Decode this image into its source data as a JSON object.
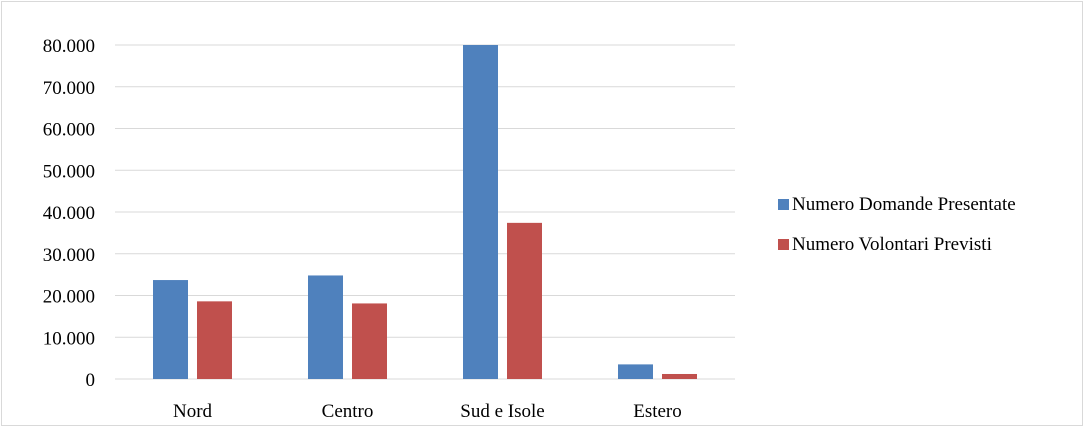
{
  "chart_data": {
    "type": "bar",
    "categories": [
      "Nord",
      "Centro",
      "Sud e Isole",
      "Estero"
    ],
    "series": [
      {
        "name": "Numero Domande Presentate",
        "color": "#4f81bd",
        "values": [
          23700,
          24800,
          80000,
          3500
        ]
      },
      {
        "name": "Numero Volontari Previsti",
        "color": "#c0504d",
        "values": [
          18600,
          18100,
          37400,
          1200
        ]
      }
    ],
    "y_ticks": [
      "0",
      "10.000",
      "20.000",
      "30.000",
      "40.000",
      "50.000",
      "60.000",
      "70.000",
      "80.000"
    ],
    "ylim": [
      0,
      80000
    ],
    "grid": true,
    "legend_position": "right"
  }
}
